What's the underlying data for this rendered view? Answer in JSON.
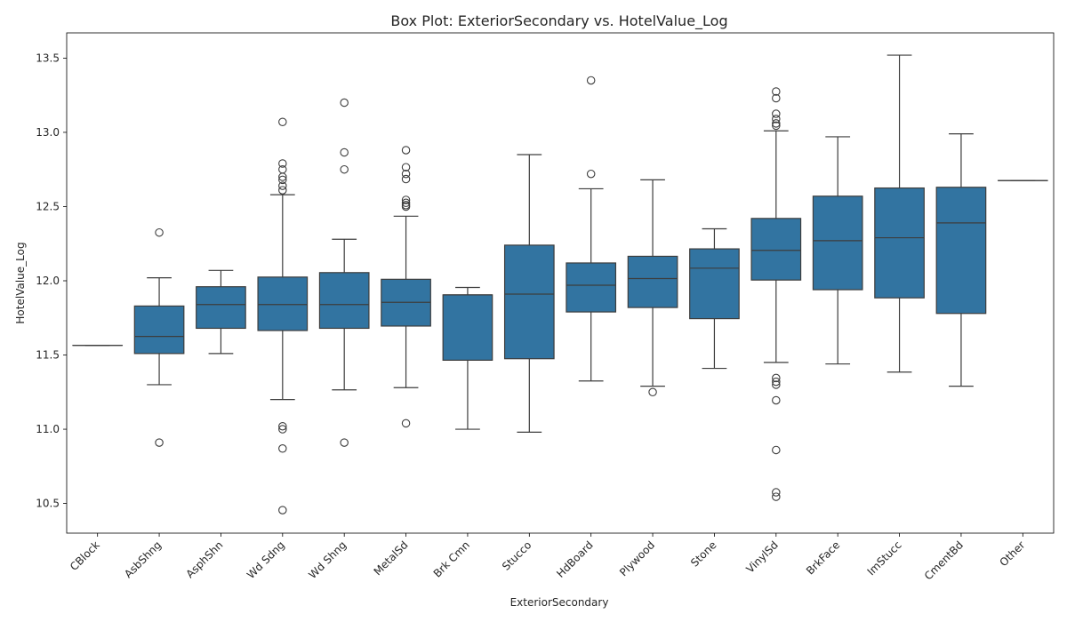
{
  "chart_data": {
    "type": "box",
    "title": "Box Plot: ExteriorSecondary vs. HotelValue_Log",
    "xlabel": "ExteriorSecondary",
    "ylabel": "HotelValue_Log",
    "ylim": [
      10.3,
      13.67
    ],
    "yticks": [
      10.5,
      11.0,
      11.5,
      12.0,
      12.5,
      13.0,
      13.5
    ],
    "grid": false,
    "box_color": "#3274a1",
    "line_color": "#3d3d3d",
    "categories": [
      "CBlock",
      "AsbShng",
      "AsphShn",
      "Wd Sdng",
      "Wd Shng",
      "MetalSd",
      "Brk Cmn",
      "Stucco",
      "HdBoard",
      "Plywood",
      "Stone",
      "VinylSd",
      "BrkFace",
      "ImStucc",
      "CmentBd",
      "Other"
    ],
    "boxes": [
      {
        "category": "CBlock",
        "whislo": 11.565,
        "q1": 11.565,
        "med": 11.565,
        "q3": 11.565,
        "whishi": 11.565,
        "fliers": []
      },
      {
        "category": "AsbShng",
        "whislo": 11.3,
        "q1": 11.51,
        "med": 11.625,
        "q3": 11.83,
        "whishi": 12.02,
        "fliers": [
          12.325,
          10.91
        ]
      },
      {
        "category": "AsphShn",
        "whislo": 11.51,
        "q1": 11.68,
        "med": 11.84,
        "q3": 11.96,
        "whishi": 12.07,
        "fliers": []
      },
      {
        "category": "Wd Sdng",
        "whislo": 11.2,
        "q1": 11.665,
        "med": 11.84,
        "q3": 12.025,
        "whishi": 12.58,
        "fliers": [
          13.07,
          12.79,
          12.75,
          12.7,
          12.68,
          12.64,
          12.61,
          11.02,
          11.0,
          10.87,
          10.455
        ]
      },
      {
        "category": "Wd Shng",
        "whislo": 11.265,
        "q1": 11.68,
        "med": 11.84,
        "q3": 12.055,
        "whishi": 12.28,
        "fliers": [
          13.2,
          12.865,
          12.75,
          10.91
        ]
      },
      {
        "category": "MetalSd",
        "whislo": 11.28,
        "q1": 11.695,
        "med": 11.855,
        "q3": 12.01,
        "whishi": 12.435,
        "fliers": [
          12.88,
          12.765,
          12.72,
          12.685,
          12.545,
          12.525,
          12.51,
          12.5,
          11.04
        ]
      },
      {
        "category": "Brk Cmn",
        "whislo": 11.0,
        "q1": 11.465,
        "med": 11.905,
        "q3": 11.905,
        "whishi": 11.955,
        "fliers": []
      },
      {
        "category": "Stucco",
        "whislo": 10.98,
        "q1": 11.475,
        "med": 11.91,
        "q3": 12.24,
        "whishi": 12.85,
        "fliers": []
      },
      {
        "category": "HdBoard",
        "whislo": 11.325,
        "q1": 11.79,
        "med": 11.97,
        "q3": 12.12,
        "whishi": 12.62,
        "fliers": [
          13.35,
          12.72
        ]
      },
      {
        "category": "Plywood",
        "whislo": 11.29,
        "q1": 11.82,
        "med": 12.015,
        "q3": 12.165,
        "whishi": 12.68,
        "fliers": [
          11.25
        ]
      },
      {
        "category": "Stone",
        "whislo": 11.41,
        "q1": 11.745,
        "med": 12.085,
        "q3": 12.215,
        "whishi": 12.35,
        "fliers": []
      },
      {
        "category": "VinylSd",
        "whislo": 11.45,
        "q1": 12.005,
        "med": 12.205,
        "q3": 12.42,
        "whishi": 13.01,
        "fliers": [
          13.275,
          13.23,
          13.125,
          13.09,
          13.06,
          13.045,
          11.345,
          11.32,
          11.3,
          11.195,
          10.86,
          10.575,
          10.545
        ]
      },
      {
        "category": "BrkFace",
        "whislo": 11.44,
        "q1": 11.94,
        "med": 12.27,
        "q3": 12.57,
        "whishi": 12.97,
        "fliers": []
      },
      {
        "category": "ImStucc",
        "whislo": 11.385,
        "q1": 11.885,
        "med": 12.29,
        "q3": 12.625,
        "whishi": 13.52,
        "fliers": []
      },
      {
        "category": "CmentBd",
        "whislo": 11.29,
        "q1": 11.78,
        "med": 12.39,
        "q3": 12.63,
        "whishi": 12.99,
        "fliers": []
      },
      {
        "category": "Other",
        "whislo": 12.675,
        "q1": 12.675,
        "med": 12.675,
        "q3": 12.675,
        "whishi": 12.675,
        "fliers": []
      }
    ]
  }
}
